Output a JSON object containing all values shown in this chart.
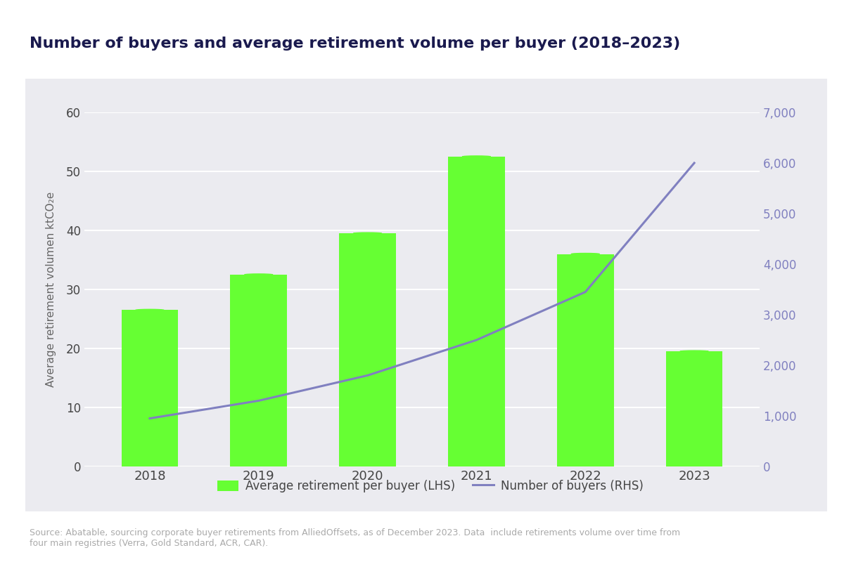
{
  "title": "Number of buyers and average retirement volume per buyer (2018–2023)",
  "years": [
    2018,
    2019,
    2020,
    2021,
    2022,
    2023
  ],
  "bar_values": [
    26.5,
    32.5,
    39.5,
    52.5,
    36.0,
    19.5
  ],
  "line_values": [
    950,
    1300,
    1800,
    2500,
    3450,
    6000
  ],
  "bar_color": "#66ff33",
  "line_color": "#8080c0",
  "ylabel_left": "Average retirement volumen ktCO₂e",
  "ylim_left": [
    0,
    60
  ],
  "ylim_right": [
    0,
    7000
  ],
  "yticks_left": [
    0,
    10,
    20,
    30,
    40,
    50,
    60
  ],
  "yticks_right": [
    0,
    1000,
    2000,
    3000,
    4000,
    5000,
    6000,
    7000
  ],
  "legend_bar_label": "Average retirement per buyer (LHS)",
  "legend_line_label": "Number of buyers (RHS)",
  "source_text": "Source: Abatable, sourcing corporate buyer retirements from AlliedOffsets, as of December 2023. Data  include retirements volume over time from\nfour main registries (Verra, Gold Standard, ACR, CAR).",
  "panel_color": "#ebebf0",
  "outer_background": "#ffffff",
  "title_color": "#1a1a4e",
  "axis_label_color": "#666666",
  "tick_color": "#444444",
  "source_color": "#aaaaaa",
  "bar_width": 0.52,
  "grid_color": "#ffffff",
  "right_tick_color": "#8080c0"
}
